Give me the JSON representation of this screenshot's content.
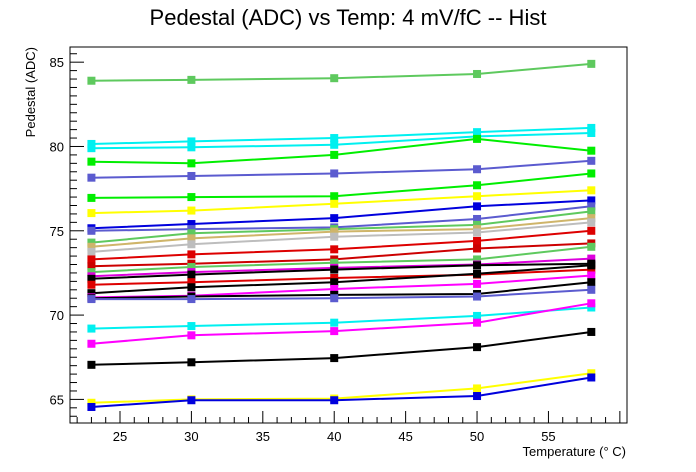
{
  "chart_data": {
    "type": "line",
    "title": "Pedestal (ADC) vs Temp: 4 mV/fC -- Hist",
    "xlabel": "Temperature (° C)",
    "ylabel": "Pedestal (ADC)",
    "xlim": [
      21.5,
      60.5
    ],
    "ylim": [
      63.6,
      85.9
    ],
    "xticks": [
      25,
      30,
      35,
      40,
      45,
      50,
      55
    ],
    "yticks": [
      65,
      70,
      75,
      80,
      85
    ],
    "grid": false,
    "x": [
      23,
      30,
      40,
      50,
      58
    ],
    "series": [
      {
        "color": "#5ec95e",
        "values": [
          83.9,
          83.95,
          84.05,
          84.3,
          84.9
        ]
      },
      {
        "color": "#00f0f0",
        "values": [
          80.15,
          80.3,
          80.5,
          80.85,
          81.1
        ]
      },
      {
        "color": "#00f0f0",
        "values": [
          79.9,
          79.95,
          80.1,
          80.6,
          80.8
        ]
      },
      {
        "color": "#00ee00",
        "values": [
          79.1,
          79.0,
          79.5,
          80.45,
          79.75
        ]
      },
      {
        "color": "#5b5bcf",
        "values": [
          78.15,
          78.25,
          78.4,
          78.65,
          79.15
        ]
      },
      {
        "color": "#00ee00",
        "values": [
          76.95,
          77.0,
          77.05,
          77.7,
          78.4
        ]
      },
      {
        "color": "#ffff00",
        "values": [
          76.05,
          76.2,
          76.6,
          77.05,
          77.4
        ]
      },
      {
        "color": "#0000dd",
        "values": [
          75.15,
          75.4,
          75.75,
          76.45,
          76.8
        ]
      },
      {
        "color": "#5b5bcf",
        "values": [
          75.0,
          75.1,
          75.2,
          75.7,
          76.45
        ]
      },
      {
        "color": "#5ec95e",
        "values": [
          74.3,
          74.85,
          75.1,
          75.35,
          76.15
        ]
      },
      {
        "color": "#cfb56a",
        "values": [
          74.05,
          74.55,
          74.95,
          75.1,
          75.75
        ]
      },
      {
        "color": "#bdbdbd",
        "values": [
          73.75,
          74.2,
          74.65,
          74.9,
          75.5
        ]
      },
      {
        "color": "#dd0000",
        "values": [
          73.3,
          73.6,
          73.9,
          74.4,
          75.0
        ]
      },
      {
        "color": "#cc0000",
        "values": [
          72.9,
          73.05,
          73.3,
          73.95,
          74.25
        ]
      },
      {
        "color": "#5ec95e",
        "values": [
          72.55,
          72.85,
          73.1,
          73.3,
          74.05
        ]
      },
      {
        "color": "#dd00dd",
        "values": [
          72.3,
          72.55,
          72.8,
          73.0,
          73.35
        ]
      },
      {
        "color": "#000000",
        "values": [
          72.15,
          72.4,
          72.7,
          72.95,
          73.05
        ]
      },
      {
        "color": "#dd0000",
        "values": [
          71.8,
          71.95,
          72.2,
          72.4,
          72.7
        ]
      },
      {
        "color": "#000000",
        "values": [
          71.3,
          71.65,
          71.95,
          72.45,
          72.95
        ]
      },
      {
        "color": "#ff00ff",
        "values": [
          71.05,
          71.15,
          71.55,
          71.85,
          72.35
        ]
      },
      {
        "color": "#000000",
        "values": [
          71.0,
          71.1,
          71.2,
          71.25,
          71.95
        ]
      },
      {
        "color": "#5b5bcf",
        "values": [
          70.95,
          70.95,
          71.0,
          71.1,
          71.5
        ]
      },
      {
        "color": "#00f0f0",
        "values": [
          69.2,
          69.35,
          69.55,
          69.95,
          70.45
        ]
      },
      {
        "color": "#ff00ff",
        "values": [
          68.3,
          68.8,
          69.05,
          69.55,
          70.7
        ]
      },
      {
        "color": "#000000",
        "values": [
          67.05,
          67.2,
          67.45,
          68.1,
          69.0
        ]
      },
      {
        "color": "#ffff00",
        "values": [
          64.8,
          65.0,
          65.05,
          65.65,
          66.55
        ]
      },
      {
        "color": "#0000dd",
        "values": [
          64.55,
          64.95,
          64.95,
          65.2,
          66.3
        ]
      }
    ]
  }
}
